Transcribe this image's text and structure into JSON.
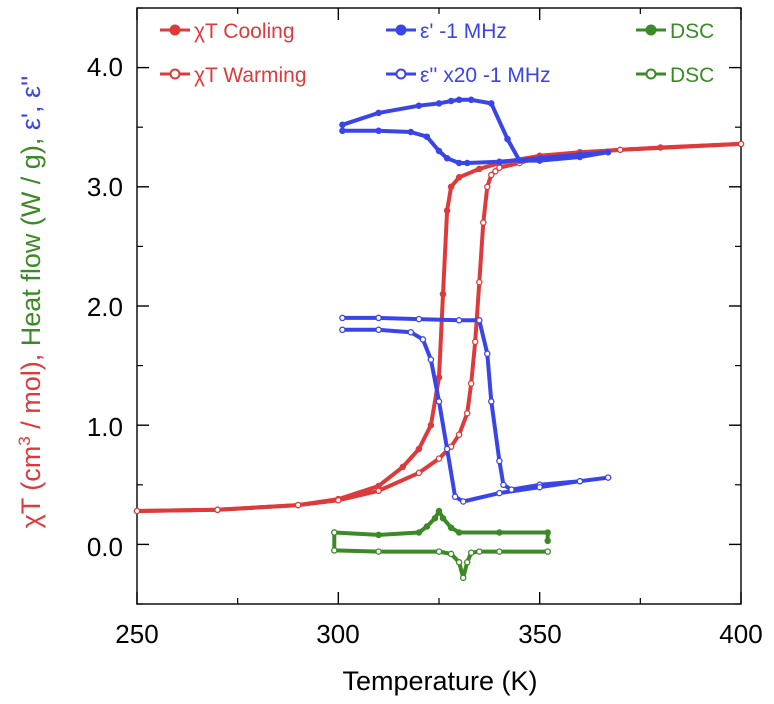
{
  "colors": {
    "red": "#dd3b3b",
    "blue": "#3a45e8",
    "green": "#3b8a25",
    "axis": "#000000"
  },
  "chart_data": {
    "type": "line",
    "xlabel": "Temperature (K)",
    "ylabel_parts": [
      {
        "id": "chiT",
        "prefix": "χT (cm",
        "sup": "3",
        "suffix": " / mol), ",
        "color": "red"
      },
      {
        "id": "heat",
        "text": "Heat flow (W / g), ",
        "color": "green"
      },
      {
        "id": "eps",
        "text": "ε', ε''",
        "color": "blue"
      }
    ],
    "xlim": [
      250,
      400
    ],
    "ylim": [
      -0.5,
      4.5
    ],
    "xticks": [
      250,
      300,
      350,
      400
    ],
    "yticks": [
      0.0,
      1.0,
      2.0,
      3.0,
      4.0
    ],
    "xtick_labels": [
      "250",
      "300",
      "350",
      "400"
    ],
    "ytick_labels": [
      "0.0",
      "1.0",
      "2.0",
      "3.0",
      "4.0"
    ],
    "series": [
      {
        "name": "χT Cooling",
        "color": "red",
        "marker": "filled",
        "x": [
          250,
          270,
          290,
          300,
          310,
          316,
          320,
          323,
          325,
          326,
          327,
          328,
          330,
          335,
          340,
          350,
          360,
          380,
          400
        ],
        "y": [
          0.28,
          0.29,
          0.33,
          0.38,
          0.49,
          0.65,
          0.8,
          1.0,
          1.4,
          2.1,
          2.8,
          3.0,
          3.08,
          3.15,
          3.2,
          3.26,
          3.29,
          3.33,
          3.36
        ]
      },
      {
        "name": "χT Warming",
        "color": "red",
        "marker": "open",
        "x": [
          250,
          270,
          290,
          300,
          310,
          320,
          325,
          328,
          330,
          332,
          333,
          334,
          335,
          336,
          337,
          338,
          339,
          340,
          345,
          350,
          370,
          400
        ],
        "y": [
          0.28,
          0.29,
          0.33,
          0.37,
          0.45,
          0.6,
          0.72,
          0.82,
          0.92,
          1.1,
          1.35,
          1.7,
          2.2,
          2.7,
          3.0,
          3.1,
          3.13,
          3.16,
          3.2,
          3.25,
          3.31,
          3.36
        ]
      },
      {
        "name": "ε' -1 MHz",
        "color": "blue",
        "marker": "filled",
        "x": [
          301,
          310,
          320,
          325,
          328,
          330,
          333,
          338,
          342,
          345,
          350,
          360,
          367,
          360,
          350,
          340,
          332,
          330,
          327,
          325,
          322,
          318,
          310,
          301
        ],
        "y": [
          3.52,
          3.62,
          3.68,
          3.7,
          3.72,
          3.73,
          3.73,
          3.7,
          3.4,
          3.22,
          3.22,
          3.25,
          3.29,
          3.27,
          3.24,
          3.21,
          3.2,
          3.2,
          3.24,
          3.3,
          3.42,
          3.46,
          3.47,
          3.47
        ]
      },
      {
        "name": "ε'' x20 -1 MHz",
        "color": "blue",
        "marker": "open",
        "x": [
          301,
          310,
          320,
          330,
          335,
          337,
          338,
          340,
          341,
          343,
          350,
          360,
          367,
          360,
          350,
          340,
          331,
          329,
          327,
          325,
          323,
          321,
          318,
          310,
          301
        ],
        "y": [
          1.9,
          1.9,
          1.89,
          1.88,
          1.88,
          1.6,
          1.2,
          0.7,
          0.5,
          0.46,
          0.5,
          0.53,
          0.56,
          0.53,
          0.48,
          0.43,
          0.36,
          0.4,
          0.8,
          1.2,
          1.55,
          1.72,
          1.78,
          1.8,
          1.8
        ]
      },
      {
        "name": "DSC",
        "color": "green",
        "marker": "filled",
        "x": [
          299,
          310,
          320,
          322,
          324,
          325,
          326,
          328,
          330,
          340,
          352,
          352
        ],
        "y": [
          0.1,
          0.08,
          0.1,
          0.15,
          0.22,
          0.28,
          0.22,
          0.14,
          0.1,
          0.1,
          0.1,
          0.03
        ]
      },
      {
        "name": "DSC",
        "color": "green",
        "marker": "open",
        "x": [
          299,
          299,
          310,
          325,
          328,
          330,
          331,
          332,
          333,
          335,
          340,
          352
        ],
        "y": [
          0.1,
          -0.05,
          -0.06,
          -0.06,
          -0.08,
          -0.15,
          -0.28,
          -0.15,
          -0.07,
          -0.06,
          -0.06,
          -0.06
        ]
      }
    ],
    "legend": [
      {
        "label": "χT Cooling",
        "color": "red",
        "marker": "filled"
      },
      {
        "label": "χT Warming",
        "color": "red",
        "marker": "open"
      },
      {
        "label": "ε' -1 MHz",
        "color": "blue",
        "marker": "filled"
      },
      {
        "label": "ε'' x20 -1 MHz",
        "color": "blue",
        "marker": "open"
      },
      {
        "label": "DSC",
        "color": "green",
        "marker": "filled"
      },
      {
        "label": "DSC",
        "color": "green",
        "marker": "open"
      }
    ],
    "legend_position": "top"
  }
}
